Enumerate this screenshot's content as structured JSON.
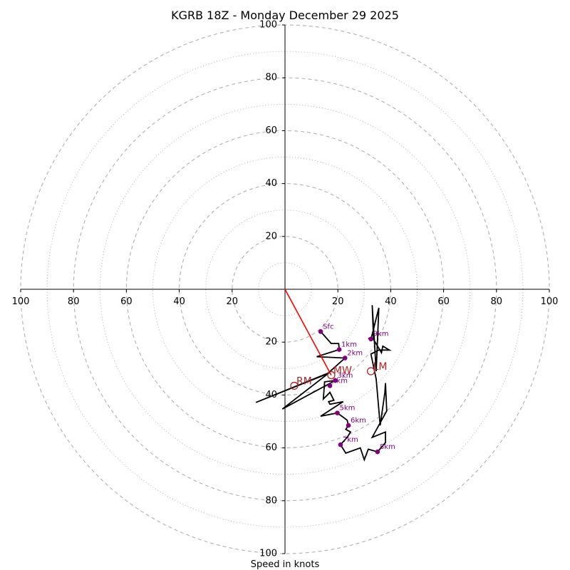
{
  "chart_data": {
    "type": "hodograph",
    "title": "KGRB 18Z - Monday December 29 2025",
    "xlabel": "Speed in knots",
    "units": "knots",
    "axis_range": [
      -100,
      100
    ],
    "ring_major": [
      20,
      40,
      60,
      80,
      100
    ],
    "ring_minor": [
      10,
      30,
      50,
      70,
      90
    ],
    "tick_labels": {
      "top": [
        "100",
        "80",
        "60",
        "40",
        "20"
      ],
      "left": [
        "100",
        "80",
        "60",
        "40",
        "20"
      ],
      "right": [
        "20",
        "40",
        "60",
        "80",
        "100"
      ],
      "bottom": [
        "20",
        "40",
        "60",
        "80",
        "100"
      ]
    },
    "trace": [
      [
        13.5,
        -16
      ],
      [
        17.5,
        -20.5
      ],
      [
        20.3,
        -20.5
      ],
      [
        20.5,
        -22.8
      ],
      [
        12,
        -25.5
      ],
      [
        22.7,
        -26
      ],
      [
        16,
        -32
      ],
      [
        -11,
        -42.8
      ],
      [
        16.8,
        -31.5
      ],
      [
        -1,
        -45.3
      ],
      [
        19,
        -34.5
      ],
      [
        15,
        -35
      ],
      [
        14.5,
        -41.5
      ],
      [
        17,
        -39
      ],
      [
        18.5,
        -42
      ],
      [
        16.5,
        -42.5
      ],
      [
        17,
        -43.5
      ],
      [
        22,
        -42.5
      ],
      [
        13.5,
        -48
      ],
      [
        19.8,
        -46.8
      ],
      [
        23.5,
        -49.5
      ],
      [
        24,
        -51.5
      ],
      [
        23,
        -53
      ],
      [
        24.8,
        -54
      ],
      [
        23.5,
        -56
      ],
      [
        21,
        -58.8
      ],
      [
        23,
        -62
      ],
      [
        28.5,
        -60
      ],
      [
        30,
        -64.5
      ],
      [
        31.5,
        -60.5
      ],
      [
        35,
        -61.5
      ],
      [
        38,
        -58
      ],
      [
        38,
        -54
      ],
      [
        33,
        -56
      ],
      [
        38.5,
        -46
      ],
      [
        38,
        -35.5
      ],
      [
        37.8,
        -39
      ],
      [
        36,
        -51.5
      ],
      [
        34.5,
        -34
      ],
      [
        32.5,
        -24.5
      ],
      [
        35.5,
        -23
      ],
      [
        39.5,
        -23
      ],
      [
        37,
        -21.5
      ],
      [
        36.5,
        -24
      ],
      [
        33.5,
        -19
      ],
      [
        33,
        -6
      ],
      [
        34.5,
        -31
      ],
      [
        35.5,
        -7
      ],
      [
        32.5,
        -19
      ],
      [
        31.5,
        -18.5
      ]
    ],
    "height_markers": [
      {
        "label": "Sfc",
        "u": 13.5,
        "v": -16
      },
      {
        "label": "1km",
        "u": 20.5,
        "v": -22.8
      },
      {
        "label": "2km",
        "u": 22.7,
        "v": -26
      },
      {
        "label": "3km",
        "u": 19,
        "v": -34.5
      },
      {
        "label": "4km",
        "u": 17,
        "v": -36.5
      },
      {
        "label": "5km",
        "u": 19.8,
        "v": -46.8
      },
      {
        "label": "6km",
        "u": 24,
        "v": -51.5
      },
      {
        "label": "7km",
        "u": 21,
        "v": -58.8
      },
      {
        "label": "8km",
        "u": 35,
        "v": -61.5
      },
      {
        "label": "9km",
        "u": 32.5,
        "v": -18.8
      }
    ],
    "motion_vectors": [
      {
        "label": "RM",
        "u": 3.5,
        "v": -36.5
      },
      {
        "label": "LM",
        "u": 32.5,
        "v": -31
      },
      {
        "label": "MW",
        "u": 17.5,
        "v": -32.5
      }
    ],
    "colors": {
      "trace": "#000000",
      "markers": "#800080",
      "motion": "#b22222",
      "shear_vector": "#ff0000",
      "rings": "#b0b0b0",
      "axes": "#000000"
    }
  }
}
